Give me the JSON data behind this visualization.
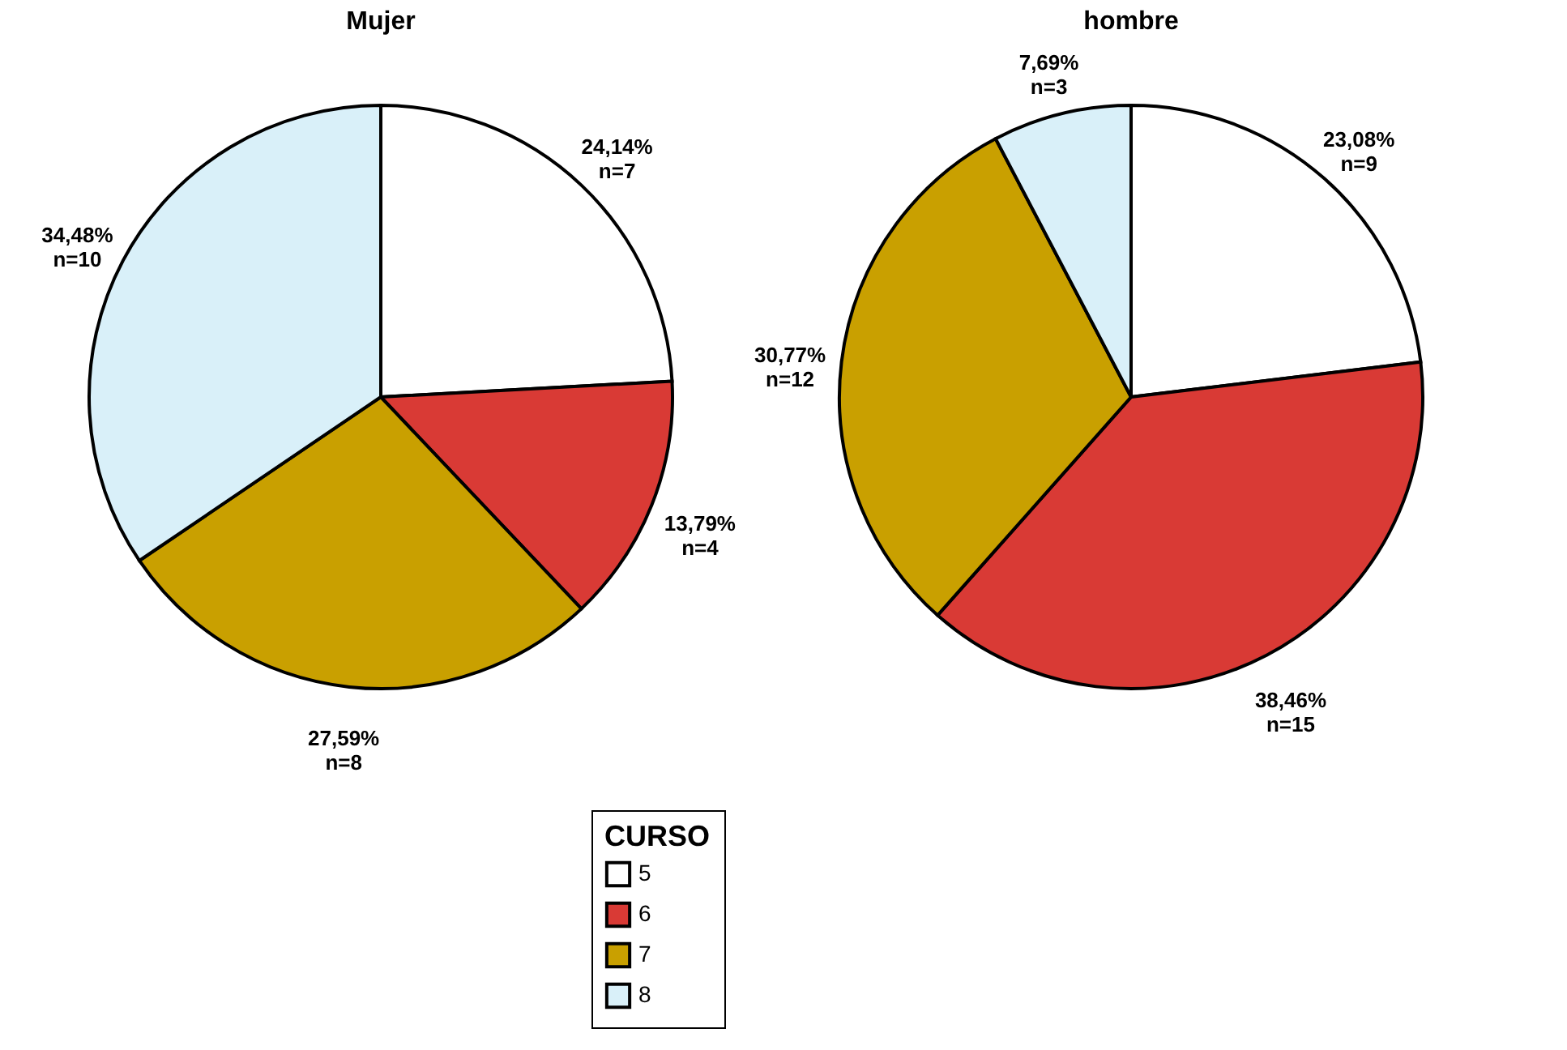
{
  "chart_data": [
    {
      "type": "pie",
      "title": "Mujer",
      "categories": [
        "5",
        "6",
        "7",
        "8"
      ],
      "values": [
        24.14,
        13.79,
        27.59,
        34.48
      ],
      "colors": [
        "#ffffff",
        "#d93a35",
        "#c9a000",
        "#d9f0f9"
      ],
      "value_labels": [
        "24,14%\nn=7",
        "13,79%\nn=4",
        "27,59%\nn=8",
        "34,48%\nn=10"
      ],
      "legend_title": "CURSO",
      "legend": "bottom"
    },
    {
      "type": "pie",
      "title": "hombre",
      "categories": [
        null,
        null,
        null,
        null
      ],
      "values": [
        23.08,
        38.46,
        30.77,
        7.69
      ],
      "colors": [
        "#ffffff",
        "#d93a35",
        "#c9a000",
        "#d9f0f9"
      ],
      "value_labels": [
        "23,08%\nn=9",
        "38,46%\nn=15",
        "30,77%\nn=12",
        "7,69%\nn=3"
      ],
      "legend": false
    }
  ]
}
